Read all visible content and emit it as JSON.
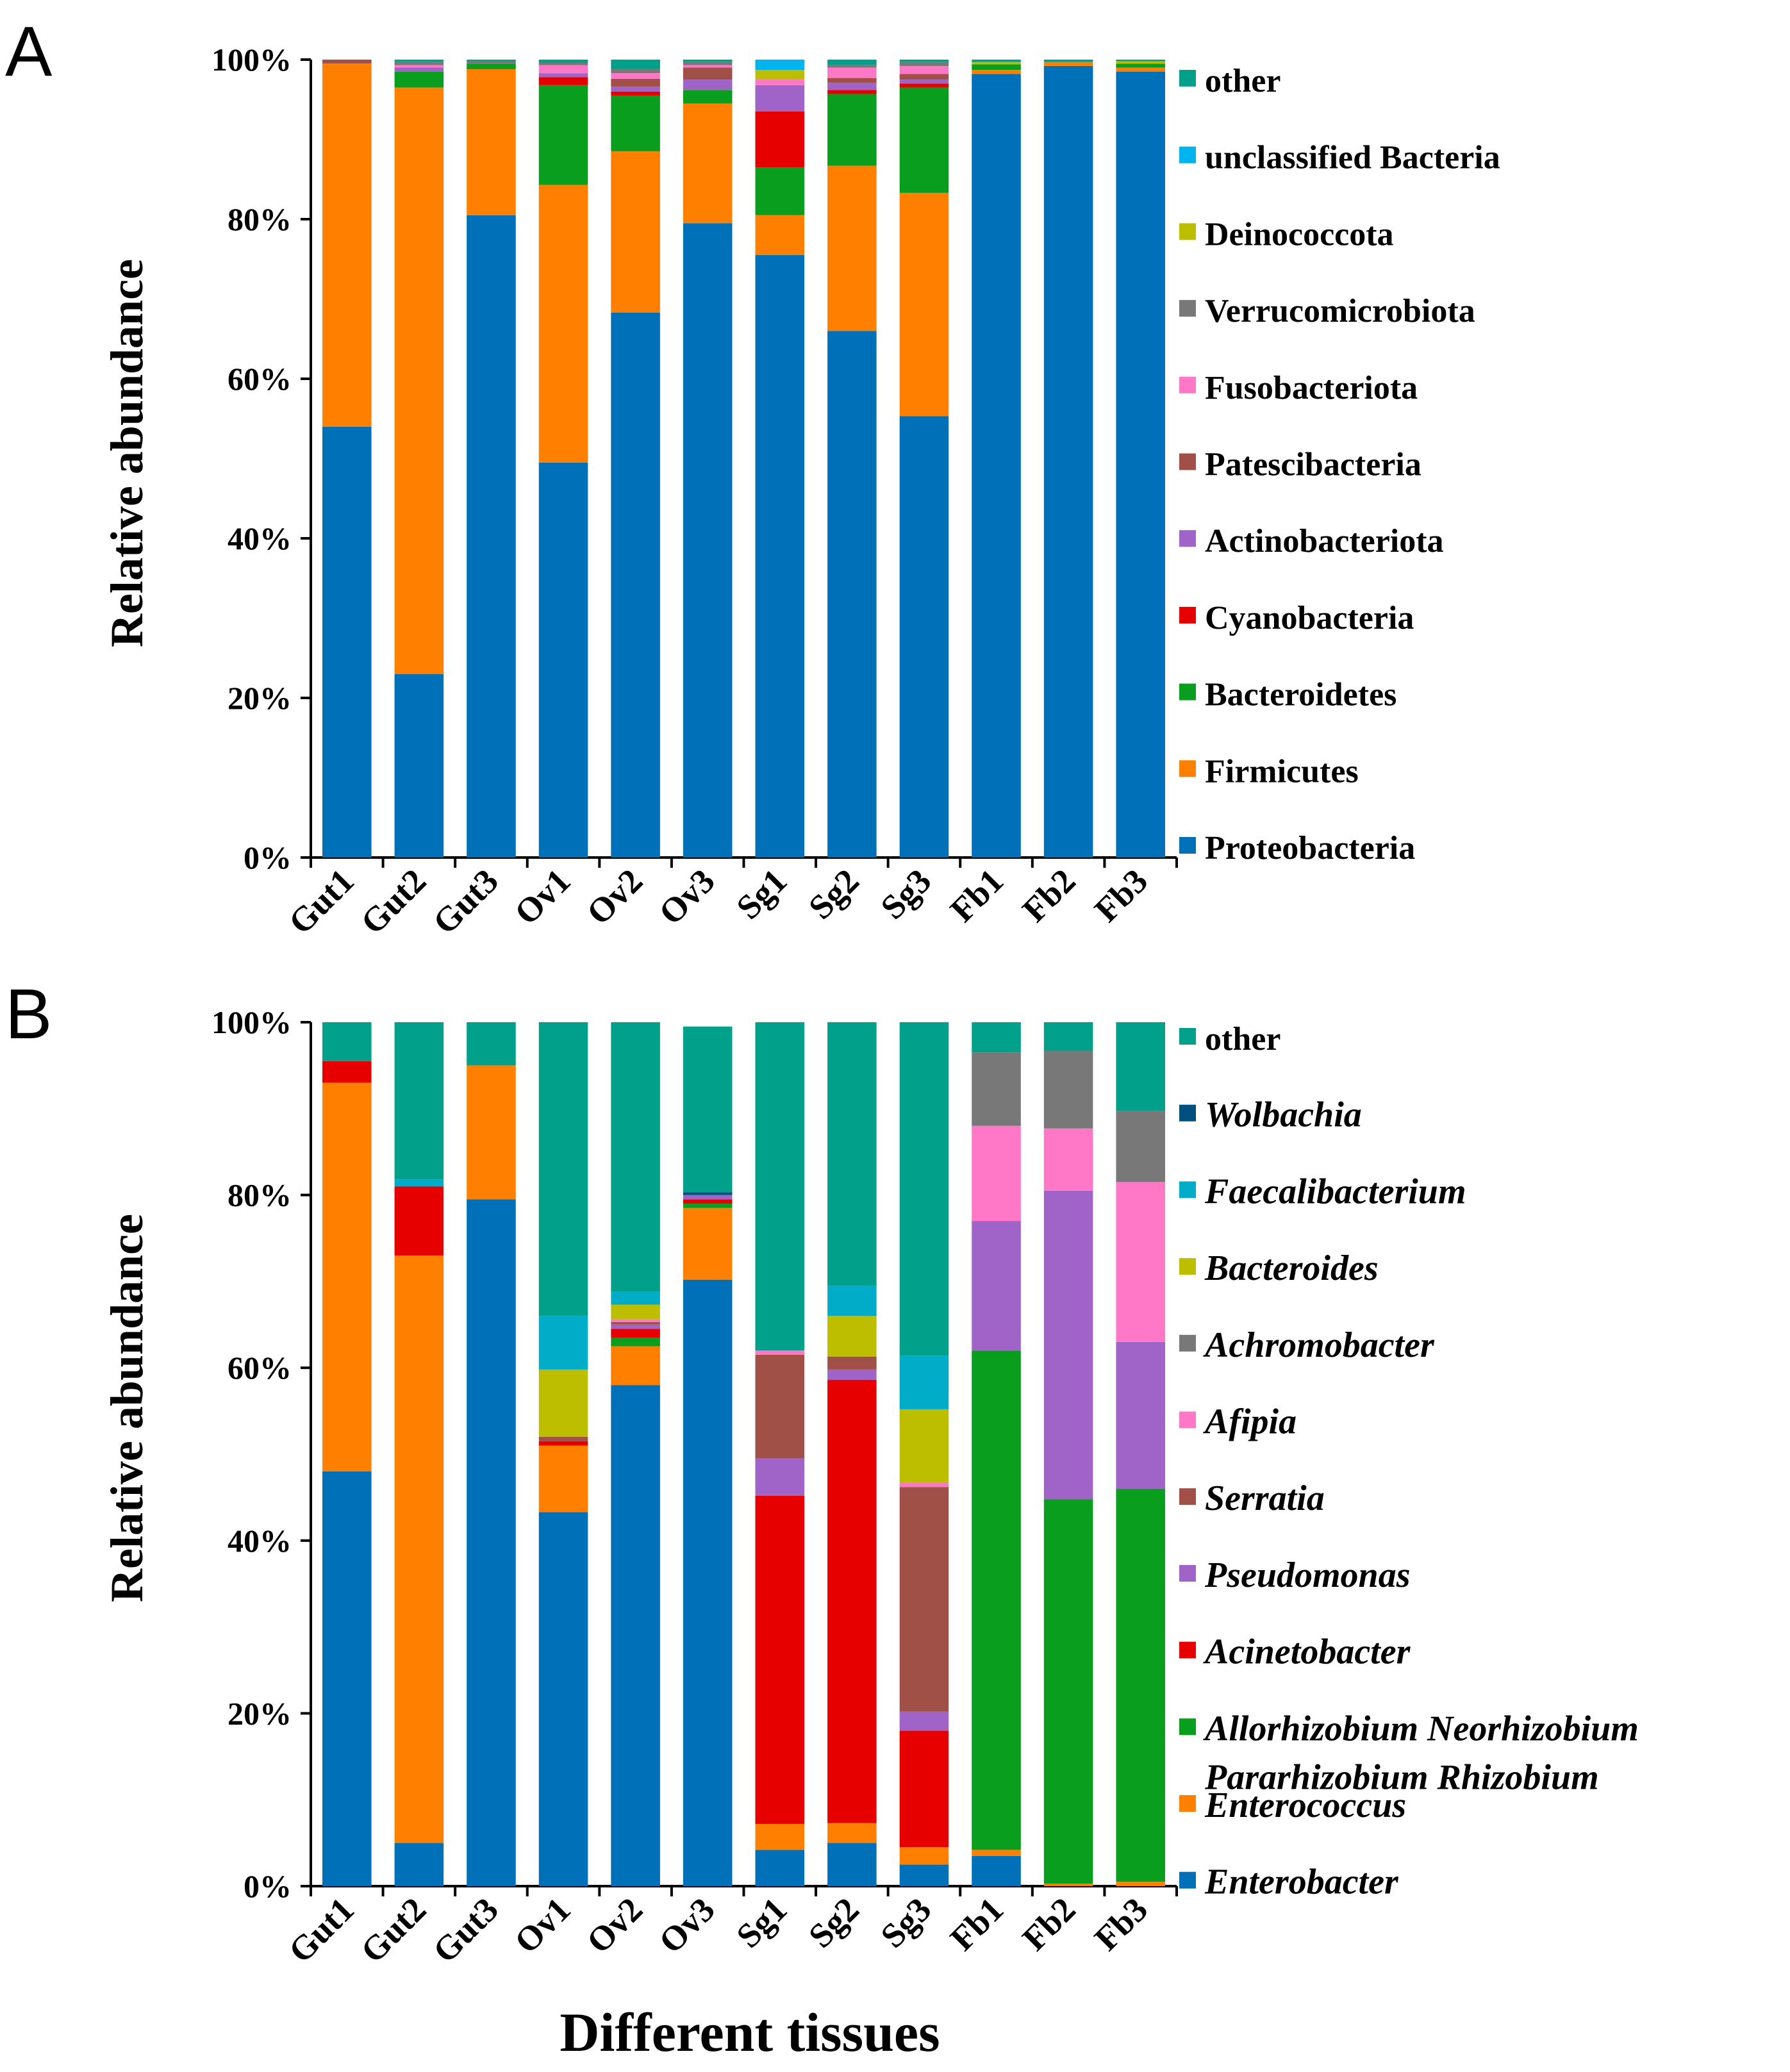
{
  "chart_data": [
    {
      "panel": "A",
      "type": "bar",
      "stacked": true,
      "ylabel": "Relative abundance",
      "xlabel": "",
      "ylim": [
        0,
        100
      ],
      "yticks": [
        "0%",
        "20%",
        "40%",
        "60%",
        "80%",
        "100%"
      ],
      "categories": [
        "Gut1",
        "Gut2",
        "Gut3",
        "Ov1",
        "Ov2",
        "Ov3",
        "Sg1",
        "Sg2",
        "Sg3",
        "Fb1",
        "Fb2",
        "Fb3"
      ],
      "italic_legend": false,
      "series": [
        {
          "name": "Proteobacteria",
          "color": "#0070b8",
          "values": [
            54,
            23,
            80.5,
            49.5,
            68.3,
            79.5,
            75.5,
            66,
            55.3,
            98.2,
            99.2,
            98.5
          ]
        },
        {
          "name": "Firmicutes",
          "color": "#ff8000",
          "values": [
            45.5,
            73.5,
            18.3,
            34.8,
            20.2,
            15,
            5,
            20.7,
            28,
            0.5,
            0.5,
            0.5
          ]
        },
        {
          "name": "Bacteroidetes",
          "color": "#0a9e1e",
          "values": [
            0,
            2,
            0.7,
            12.5,
            7,
            1.7,
            6,
            9,
            13.2,
            0.7,
            0,
            0.5
          ]
        },
        {
          "name": "Cyanobacteria",
          "color": "#e60000",
          "values": [
            0,
            0,
            0,
            1,
            0.5,
            0,
            7,
            0.5,
            0.5,
            0,
            0,
            0
          ]
        },
        {
          "name": "Actinobacteriota",
          "color": "#a064c8",
          "values": [
            0,
            0.5,
            0,
            0.5,
            0.6,
            1.3,
            3.3,
            0.9,
            0.5,
            0,
            0,
            0
          ]
        },
        {
          "name": "Patescibacteria",
          "color": "#a05046",
          "values": [
            0.5,
            0,
            0,
            0,
            1,
            1.5,
            0,
            0.6,
            0.7,
            0,
            0,
            0
          ]
        },
        {
          "name": "Fusobacteriota",
          "color": "#ff78c8",
          "values": [
            0,
            0.3,
            0,
            1,
            0.7,
            0.3,
            0.7,
            1.3,
            1,
            0,
            0,
            0
          ]
        },
        {
          "name": "Verrucomicrobiota",
          "color": "#787878",
          "values": [
            0,
            0.4,
            0.3,
            0.3,
            0.5,
            0.4,
            0,
            0.3,
            0.5,
            0,
            0,
            0
          ]
        },
        {
          "name": "Deinococcota",
          "color": "#bebe00",
          "values": [
            0,
            0,
            0,
            0,
            0,
            0,
            1.2,
            0,
            0,
            0.3,
            0,
            0.3
          ]
        },
        {
          "name": "unclassified Bacteria",
          "color": "#00b4f0",
          "values": [
            0,
            0,
            0,
            0,
            0,
            0,
            1.3,
            0,
            0,
            0,
            0,
            0
          ]
        },
        {
          "name": "other",
          "color": "#00a08a",
          "values": [
            0,
            0.3,
            0.2,
            0.4,
            1.2,
            0.3,
            0,
            0.7,
            0.3,
            0.3,
            0.3,
            0.2
          ]
        }
      ]
    },
    {
      "panel": "B",
      "type": "bar",
      "stacked": true,
      "ylabel": "Relative abundance",
      "xlabel": "Different tissues",
      "ylim": [
        0,
        100
      ],
      "yticks": [
        "0%",
        "20%",
        "40%",
        "60%",
        "80%",
        "100%"
      ],
      "categories": [
        "Gut1",
        "Gut2",
        "Gut3",
        "Ov1",
        "Ov2",
        "Ov3",
        "Sg1",
        "Sg2",
        "Sg3",
        "Fb1",
        "Fb2",
        "Fb3"
      ],
      "italic_legend": true,
      "series": [
        {
          "name": "Enterobacter",
          "color": "#0070b8",
          "values": [
            48,
            5,
            79.5,
            43.3,
            58,
            70.2,
            4.2,
            5,
            2.5,
            3.5,
            0,
            0
          ]
        },
        {
          "name": "Enterococcus",
          "color": "#ff8000",
          "values": [
            45,
            68,
            15.5,
            7.7,
            4.5,
            8.3,
            3,
            2.3,
            2,
            0.7,
            0.3,
            0.5
          ]
        },
        {
          "name": "Allorhizobium Neorhizobium Pararhizobium Rhizobium",
          "color": "#0a9e1e",
          "values": [
            0,
            0,
            0,
            0,
            1,
            0.5,
            0,
            0,
            0,
            57.8,
            44.5,
            45.5
          ]
        },
        {
          "name": "Acinetobacter",
          "color": "#e60000",
          "values": [
            2.5,
            8,
            0,
            0.5,
            1,
            0.5,
            38,
            51.3,
            13.5,
            0,
            0,
            0
          ]
        },
        {
          "name": "Pseudomonas",
          "color": "#a064c8",
          "values": [
            0,
            0,
            0,
            0,
            0.5,
            0.5,
            4.3,
            1.2,
            2.2,
            15,
            35.7,
            17
          ]
        },
        {
          "name": "Serratia",
          "color": "#a05046",
          "values": [
            0,
            0,
            0,
            0.5,
            0.3,
            0,
            12,
            1.5,
            26,
            0,
            0,
            0
          ]
        },
        {
          "name": "Afipia",
          "color": "#ff78c8",
          "values": [
            0,
            0,
            0,
            0,
            0.3,
            0,
            0.5,
            0,
            0.5,
            11,
            7.2,
            18.5
          ]
        },
        {
          "name": "Achromobacter",
          "color": "#787878",
          "values": [
            0,
            0,
            0,
            0,
            0,
            0,
            0,
            0,
            0,
            8.5,
            9,
            8.2
          ]
        },
        {
          "name": "Bacteroides",
          "color": "#bebe00",
          "values": [
            0,
            0,
            0,
            7.8,
            1.7,
            0,
            0,
            4.7,
            8.5,
            0,
            0,
            0
          ]
        },
        {
          "name": "Faecalibacterium",
          "color": "#00acc8",
          "values": [
            0,
            0.8,
            0,
            6.2,
            1.5,
            0,
            0,
            3.5,
            6.2,
            0,
            0,
            0
          ]
        },
        {
          "name": "Wolbachia",
          "color": "#00507f",
          "values": [
            0,
            0,
            0,
            0,
            0,
            0.3,
            0,
            0,
            0,
            0,
            0,
            0
          ]
        },
        {
          "name": "other",
          "color": "#00a08a",
          "values": [
            4.5,
            18.2,
            5,
            34,
            31.2,
            19.2,
            38,
            30.5,
            38.6,
            3.5,
            3.3,
            10.3
          ]
        }
      ]
    }
  ]
}
